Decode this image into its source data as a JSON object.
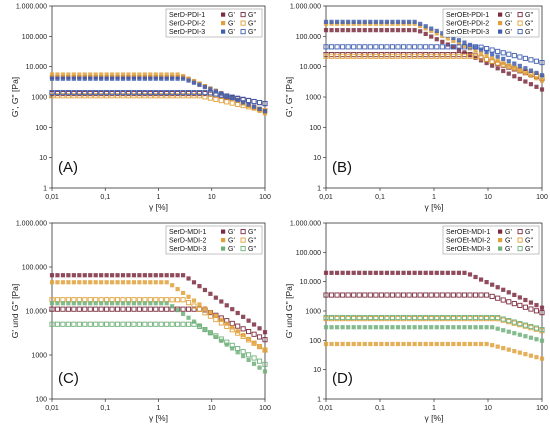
{
  "chart_data": [
    {
      "type": "scatter",
      "panel_label": "(A)",
      "xlabel": "γ [%]",
      "ylabel": "G', G'' [Pa]",
      "xscale": "log",
      "yscale": "log",
      "xlim": [
        0.01,
        100
      ],
      "ylim": [
        1,
        1000000
      ],
      "x_ticks": [
        "0,01",
        "0,1",
        "1",
        "10",
        "100"
      ],
      "y_ticks": [
        "1",
        "10",
        "100",
        "1000",
        "10.000",
        "100.000",
        "1.000.000"
      ],
      "legend": {
        "placement": "top-right",
        "gp_label": "G'",
        "gpp_label": "G''"
      },
      "series": [
        {
          "name": "SerD-PDI-1",
          "color": "#7b2c3f",
          "gp": {
            "plateau": 4500,
            "yield": 3,
            "slope": 0.75
          },
          "gpp": {
            "plateau": 1300,
            "yield": 8,
            "slope": 0.3
          }
        },
        {
          "name": "SerD-PDI-2",
          "color": "#e0a13a",
          "gp": {
            "plateau": 5500,
            "yield": 2.5,
            "slope": 0.8
          },
          "gpp": {
            "plateau": 1100,
            "yield": 6,
            "slope": 0.4
          }
        },
        {
          "name": "SerD-PDI-3",
          "color": "#3f5fb0",
          "gp": {
            "plateau": 4000,
            "yield": 3,
            "slope": 0.7
          },
          "gpp": {
            "plateau": 1400,
            "yield": 9,
            "slope": 0.35
          }
        }
      ]
    },
    {
      "type": "scatter",
      "panel_label": "(B)",
      "xlabel": "γ [%]",
      "ylabel": "G', G'' [Pa]",
      "xscale": "log",
      "yscale": "log",
      "xlim": [
        0.01,
        100
      ],
      "ylim": [
        1,
        1000000
      ],
      "x_ticks": [
        "0,01",
        "0,1",
        "1",
        "10",
        "100"
      ],
      "y_ticks": [
        "1",
        "10",
        "100",
        "1000",
        "10.000",
        "100.000",
        "1.000.000"
      ],
      "legend": {
        "placement": "top-right",
        "gp_label": "G'",
        "gpp_label": "G''"
      },
      "series": [
        {
          "name": "SerOEt-PDI-1",
          "color": "#7b2c3f",
          "gp": {
            "plateau": 160000,
            "yield": 0.5,
            "slope": 0.85
          },
          "gpp": {
            "plateau": 25000,
            "yield": 5,
            "slope": 0.6
          }
        },
        {
          "name": "SerOEt-PDI-2",
          "color": "#e0a13a",
          "gp": {
            "plateau": 260000,
            "yield": 0.45,
            "slope": 0.8
          },
          "gpp": {
            "plateau": 22000,
            "yield": 6,
            "slope": 0.55
          }
        },
        {
          "name": "SerOEt-PDI-3",
          "color": "#3f5fb0",
          "gp": {
            "plateau": 300000,
            "yield": 0.45,
            "slope": 0.75
          },
          "gpp": {
            "plateau": 45000,
            "yield": 7,
            "slope": 0.45
          }
        }
      ]
    },
    {
      "type": "scatter",
      "panel_label": "(C)",
      "xlabel": "γ [%]",
      "ylabel": "G' und G'' [Pa]",
      "xscale": "log",
      "yscale": "log",
      "xlim": [
        0.01,
        100
      ],
      "ylim": [
        100,
        1000000
      ],
      "x_ticks": [
        "0,01",
        "0,1",
        "1",
        "10",
        "100"
      ],
      "y_ticks": [
        "100",
        "1000",
        "10.000",
        "100.000",
        "1.000.000"
      ],
      "legend": {
        "placement": "top-right",
        "gp_label": "G'",
        "gpp_label": "G''"
      },
      "series": [
        {
          "name": "SerD-MDI-1",
          "color": "#7b2c3f",
          "gp": {
            "plateau": 65000,
            "yield": 3,
            "slope": 0.85
          },
          "gpp": {
            "plateau": 11000,
            "yield": 7,
            "slope": 0.6
          }
        },
        {
          "name": "SerD-MDI-2",
          "color": "#e0a13a",
          "gp": {
            "plateau": 45000,
            "yield": 1.5,
            "slope": 0.85
          },
          "gpp": {
            "plateau": 18000,
            "yield": 3,
            "slope": 0.75
          }
        },
        {
          "name": "SerD-MDI-3",
          "color": "#6fb07a",
          "gp": {
            "plateau": 15000,
            "yield": 1.5,
            "slope": 0.85
          },
          "gpp": {
            "plateau": 5000,
            "yield": 5,
            "slope": 0.7
          }
        }
      ]
    },
    {
      "type": "scatter",
      "panel_label": "(D)",
      "xlabel": "γ [%]",
      "ylabel": "G' und G'' [Pa]",
      "xscale": "log",
      "yscale": "log",
      "xlim": [
        0.01,
        100
      ],
      "ylim": [
        1,
        1000000
      ],
      "x_ticks": [
        "0,01",
        "0,1",
        "1",
        "10",
        "100"
      ],
      "y_ticks": [
        "1",
        "10",
        "100",
        "1000",
        "10.000",
        "100.000",
        "1.000.000"
      ],
      "legend": {
        "placement": "top-right",
        "gp_label": "G'",
        "gpp_label": "G''"
      },
      "series": [
        {
          "name": "SerOEt-MDI-1",
          "color": "#7b2c3f",
          "gp": {
            "plateau": 20000,
            "yield": 4,
            "slope": 0.85
          },
          "gpp": {
            "plateau": 3500,
            "yield": 10,
            "slope": 0.6
          }
        },
        {
          "name": "SerOEt-MDI-2",
          "color": "#e0a13a",
          "gp": {
            "plateau": 75,
            "yield": 10,
            "slope": 0.5
          },
          "gpp": {
            "plateau": 550,
            "yield": 15,
            "slope": 0.5
          }
        },
        {
          "name": "SerOEt-MDI-3",
          "color": "#6fb07a",
          "gp": {
            "plateau": 280,
            "yield": 12,
            "slope": 0.5
          },
          "gpp": {
            "plateau": 600,
            "yield": 15,
            "slope": 0.5
          }
        }
      ]
    }
  ]
}
